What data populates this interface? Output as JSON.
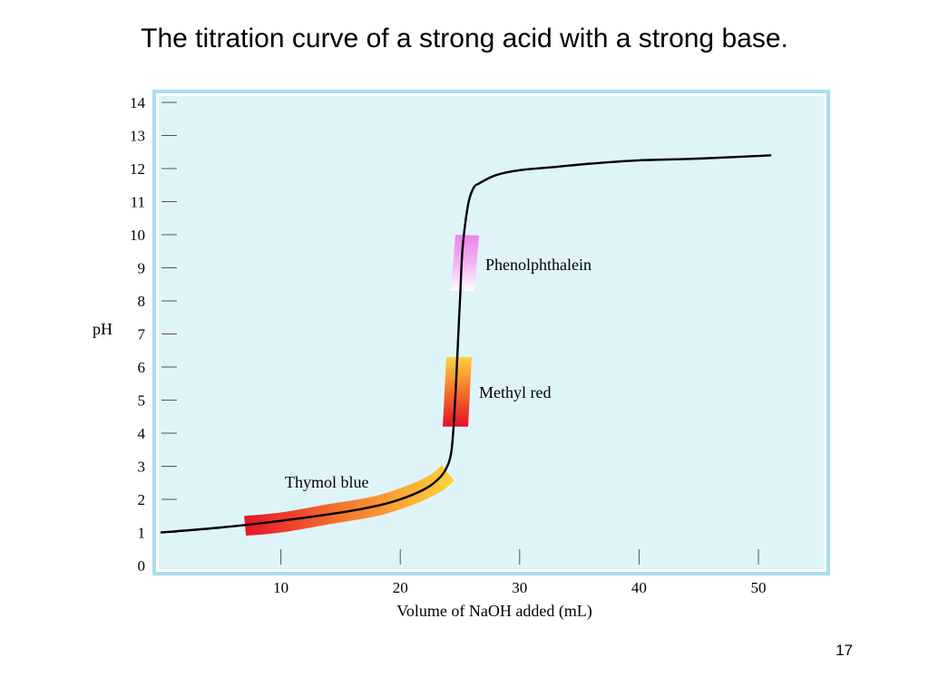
{
  "slide": {
    "title": "The titration curve of a strong acid with a strong base.",
    "page_number": "17"
  },
  "chart_data": {
    "type": "line",
    "title": "The titration curve of a strong acid with a strong base.",
    "xlabel": "Volume of NaOH added (mL)",
    "ylabel": "pH",
    "xlim": [
      0,
      55
    ],
    "ylim": [
      0,
      14
    ],
    "x_ticks": [
      10,
      20,
      30,
      40,
      50
    ],
    "y_ticks": [
      0,
      1,
      2,
      3,
      4,
      5,
      6,
      7,
      8,
      9,
      10,
      11,
      12,
      13,
      14
    ],
    "colors": {
      "plot_background": "#dff4f9",
      "frame": "#a8dfee",
      "curve": "#000000",
      "phenolphthalein": "#ee82ee",
      "methyl_red_top": "#ffd23c",
      "methyl_red_bottom": "#e8102a",
      "thymol_blue_start": "#e8102a",
      "thymol_blue_end": "#ffd23c"
    },
    "series": [
      {
        "name": "Titration curve",
        "x": [
          0,
          5,
          10,
          15,
          18,
          20,
          22,
          23,
          23.8,
          24.3,
          24.6,
          24.8,
          25.0,
          25.2,
          25.5,
          25.8,
          26.2,
          26.6,
          28,
          30,
          33,
          36,
          40,
          45,
          51
        ],
        "y": [
          1.0,
          1.15,
          1.35,
          1.6,
          1.8,
          2.0,
          2.3,
          2.55,
          2.9,
          3.5,
          5.0,
          6.5,
          8.0,
          9.5,
          10.5,
          11.1,
          11.45,
          11.55,
          11.8,
          11.95,
          12.05,
          12.15,
          12.25,
          12.3,
          12.4
        ]
      }
    ],
    "indicators": [
      {
        "name": "Phenolphthalein",
        "label": "Phenolphthalein",
        "ph_low": 8.3,
        "ph_high": 10.0
      },
      {
        "name": "Methyl red",
        "label": "Methyl red",
        "ph_low": 4.2,
        "ph_high": 6.3
      },
      {
        "name": "Thymol blue",
        "label": "Thymol blue",
        "ph_low": 1.2,
        "ph_high": 2.8
      }
    ]
  }
}
